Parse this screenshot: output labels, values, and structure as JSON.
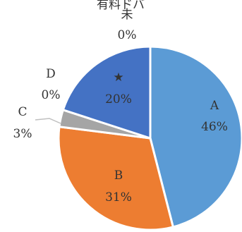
{
  "chart_data": {
    "type": "pie",
    "title": "",
    "series": [
      {
        "values": [
          46,
          31,
          3,
          0,
          20,
          0
        ],
        "labels": [
          "A",
          "B",
          "C",
          "D",
          "★",
          "未"
        ],
        "value_labels": [
          "46%",
          "31%",
          "3%",
          "0%",
          "20%",
          "0%"
        ],
        "colors": [
          "#5b9bd5",
          "#ed7d31",
          "#a5a5a5",
          "#ffc000",
          "#4472c4",
          "#70ad47"
        ]
      }
    ],
    "legend": "none",
    "partial_text_top": "有料ドバ"
  }
}
